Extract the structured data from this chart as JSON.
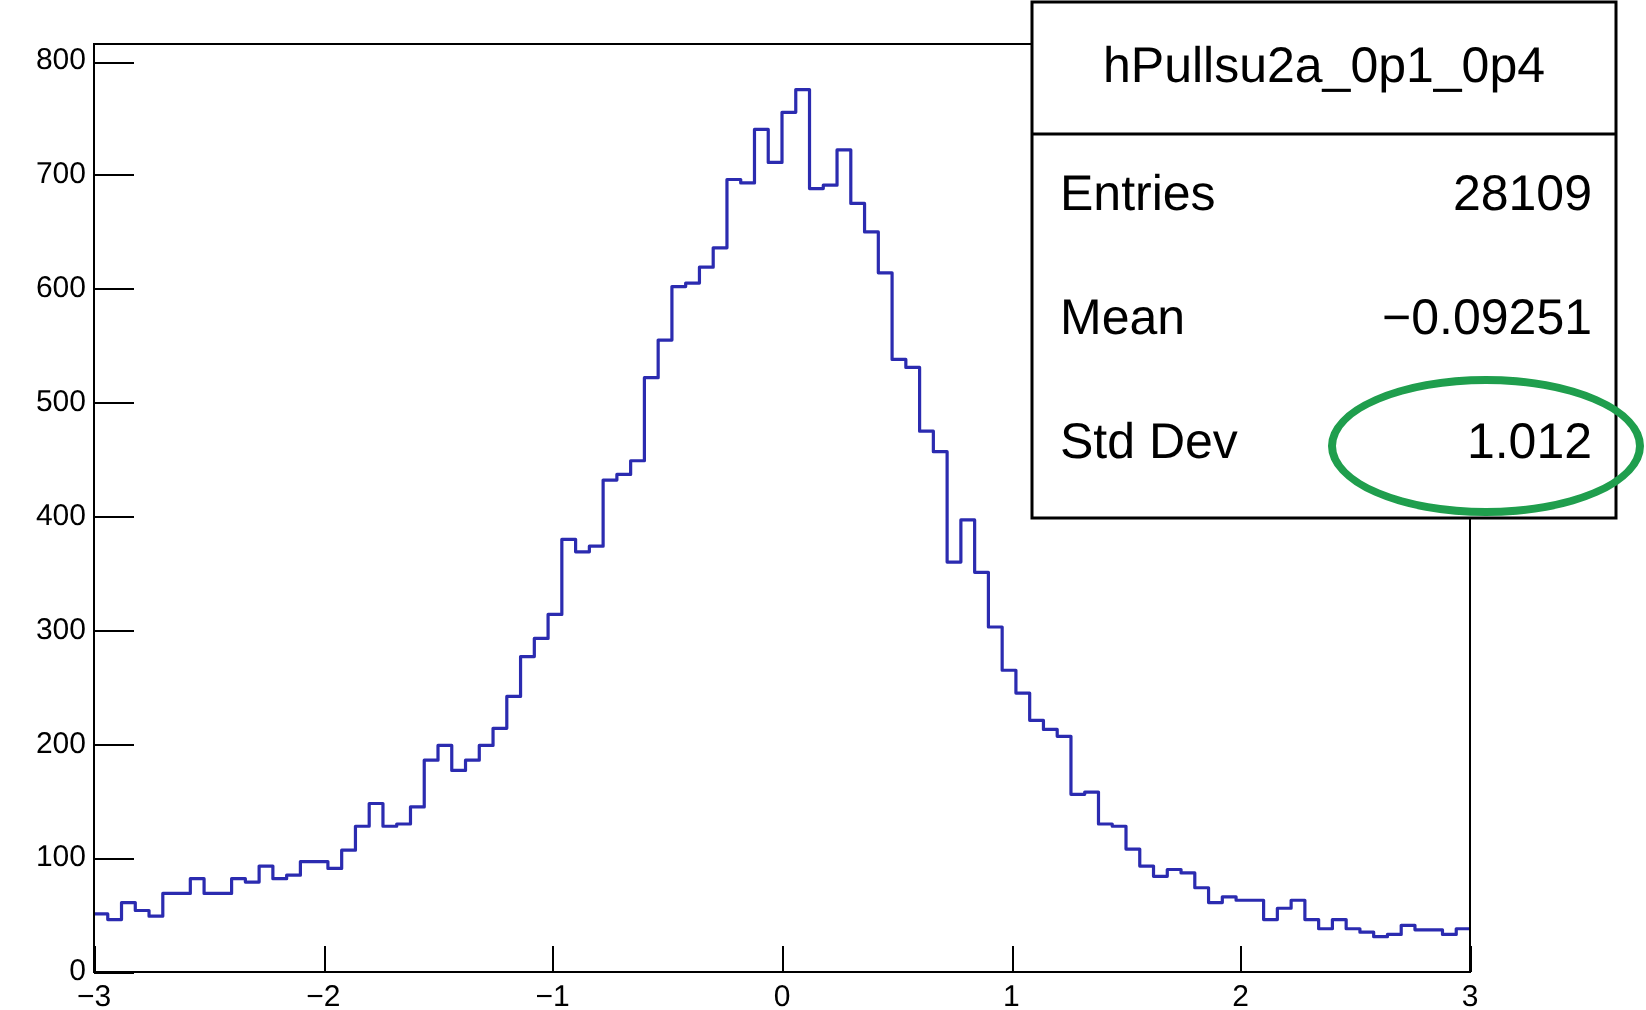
{
  "chart_data": {
    "type": "histogram",
    "bins": [
      -3,
      -2.94,
      -2.88,
      -2.82,
      -2.76,
      -2.7,
      -2.64,
      -2.58,
      -2.52,
      -2.46,
      -2.4,
      -2.34,
      -2.28,
      -2.22,
      -2.16,
      -2.1,
      -2.04,
      -1.98,
      -1.92,
      -1.86,
      -1.8,
      -1.74,
      -1.68,
      -1.62,
      -1.56,
      -1.5,
      -1.44,
      -1.38,
      -1.32,
      -1.26,
      -1.2,
      -1.14,
      -1.08,
      -1.02,
      -0.96,
      -0.9,
      -0.84,
      -0.78,
      -0.72,
      -0.66,
      -0.6,
      -0.54,
      -0.48,
      -0.42,
      -0.36,
      -0.3,
      -0.24,
      -0.18,
      -0.12,
      -0.06,
      0,
      0.06,
      0.12,
      0.18,
      0.24,
      0.3,
      0.36,
      0.42,
      0.48,
      0.54,
      0.6,
      0.66,
      0.72,
      0.78,
      0.84,
      0.9,
      0.96,
      1.02,
      1.08,
      1.14,
      1.2,
      1.26,
      1.32,
      1.38,
      1.44,
      1.5,
      1.56,
      1.62,
      1.68,
      1.74,
      1.8,
      1.86,
      1.92,
      1.98,
      2.04,
      2.1,
      2.16,
      2.22,
      2.28,
      2.34,
      2.4,
      2.46,
      2.52,
      2.58,
      2.64,
      2.7,
      2.76,
      2.82,
      2.88,
      2.94,
      3
    ],
    "values": [
      51,
      46,
      61,
      54,
      49,
      69,
      69,
      82,
      69,
      69,
      82,
      79,
      93,
      82,
      85,
      97,
      97,
      91,
      107,
      128,
      148,
      128,
      130,
      145,
      186,
      199,
      177,
      186,
      199,
      214,
      242,
      277,
      293,
      314,
      380,
      369,
      374,
      432,
      437,
      449,
      522,
      555,
      602,
      605,
      619,
      636,
      696,
      693,
      740,
      711,
      755,
      775,
      688,
      691,
      722,
      675,
      650,
      614,
      538,
      531,
      475,
      457,
      360,
      397,
      351,
      303,
      265,
      245,
      221,
      213,
      207,
      156,
      158,
      130,
      128,
      108,
      93,
      84,
      90,
      87,
      74,
      61,
      66,
      63,
      63,
      46,
      56,
      63,
      46,
      38,
      46,
      38,
      35,
      31,
      33,
      41,
      37,
      37,
      33,
      38
    ],
    "color": "#2b2bb0",
    "xlim": [
      -3,
      3
    ],
    "xticks": [
      {
        "value": -3,
        "label": "−3"
      },
      {
        "value": -2,
        "label": "−2"
      },
      {
        "value": -1,
        "label": "−1"
      },
      0,
      1,
      2,
      3
    ],
    "ylim": [
      0,
      815
    ],
    "yticks": [
      0,
      100,
      200,
      300,
      400,
      500,
      600,
      700,
      800
    ],
    "grid": false,
    "legend": false,
    "annotations": [
      "hPullsu2a_0p1_0p4",
      "Entries",
      "28109",
      "Mean",
      "−0.09251",
      "Std Dev",
      "1.012"
    ]
  }
}
